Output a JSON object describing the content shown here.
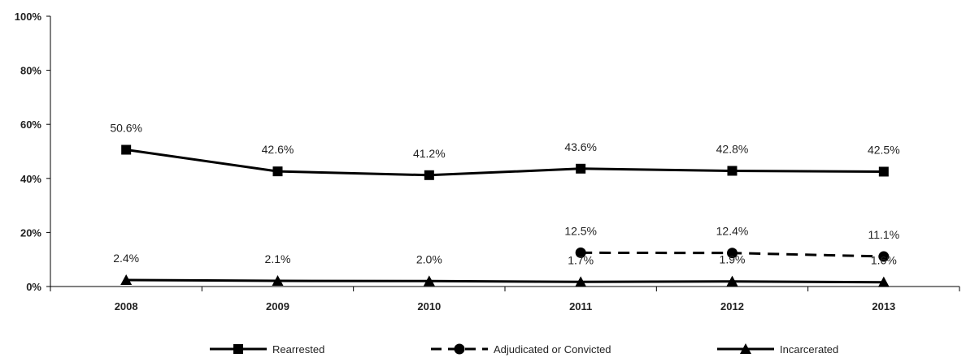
{
  "chart_data": {
    "type": "line",
    "categories": [
      "2008",
      "2009",
      "2010",
      "2011",
      "2012",
      "2013"
    ],
    "ylim": [
      0,
      100
    ],
    "yticks": [
      "0%",
      "20%",
      "40%",
      "60%",
      "80%",
      "100%"
    ],
    "grid": false,
    "legend_position": "bottom",
    "series": [
      {
        "name": "Rearrested",
        "marker": "square",
        "dash": "solid",
        "values": [
          50.6,
          42.6,
          41.2,
          43.6,
          42.8,
          42.5
        ],
        "labels": [
          "50.6%",
          "42.6%",
          "41.2%",
          "43.6%",
          "42.8%",
          "42.5%"
        ],
        "label_position": "above"
      },
      {
        "name": "Adjudicated or Convicted",
        "marker": "circle",
        "dash": "dashed",
        "values": [
          null,
          null,
          null,
          12.5,
          12.4,
          11.1
        ],
        "labels": [
          null,
          null,
          null,
          "12.5%",
          "12.4%",
          "11.1%"
        ],
        "label_position": "above"
      },
      {
        "name": "Incarcerated",
        "marker": "triangle",
        "dash": "solid",
        "values": [
          2.4,
          2.1,
          2.0,
          1.7,
          1.9,
          1.6
        ],
        "labels": [
          "2.4%",
          "2.1%",
          "2.0%",
          "1.7%",
          "1.9%",
          "1.6%"
        ],
        "label_position": "above"
      }
    ]
  },
  "colors": {
    "line": "#000000",
    "text": "#222222"
  }
}
